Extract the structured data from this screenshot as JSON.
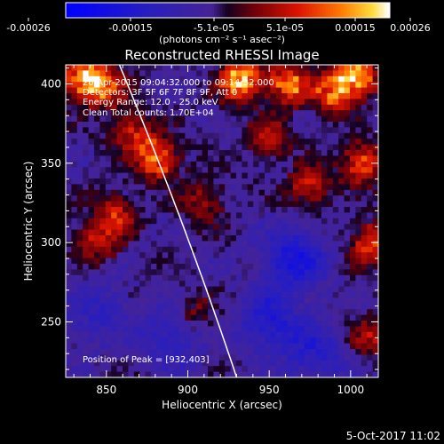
{
  "colorbar": {
    "tick_labels": [
      "-0.00026",
      "-0.00015",
      "-5.1e-05",
      "5.1e-05",
      "0.00015",
      "0.00026"
    ],
    "unit_label": "(photons cm⁻² s⁻¹ asec⁻²)",
    "range": [
      -0.00026,
      0.00026
    ]
  },
  "chart_data": {
    "type": "heatmap",
    "title": "Reconstructed RHESSI Image",
    "xlabel": "Heliocentric X (arcsec)",
    "ylabel": "Heliocentric Y (arcsec)",
    "xlim": [
      825,
      1017
    ],
    "ylim": [
      215,
      412
    ],
    "xticks": [
      850,
      900,
      950,
      1000
    ],
    "yticks": [
      250,
      300,
      350,
      400
    ],
    "grid": false,
    "annotations": [
      "20-Apr-2015 09:04:32.000 to 09:14:32.000",
      "Detectors: 3F 5F 6F 7F 8F 9F, Att 0",
      "Energy Range: 12.0 - 25.0 keV",
      "Clean    Total counts: 1.70E+04"
    ],
    "peak_label": "Position of Peak = [932,403]",
    "peak": [
      932,
      403
    ],
    "limb_overlay": true,
    "hotspots": [
      {
        "x": 836,
        "y": 404,
        "v": 0.9
      },
      {
        "x": 848,
        "y": 398,
        "v": 0.75
      },
      {
        "x": 882,
        "y": 352,
        "v": 0.8
      },
      {
        "x": 868,
        "y": 368,
        "v": 0.6
      },
      {
        "x": 856,
        "y": 318,
        "v": 0.55
      },
      {
        "x": 844,
        "y": 300,
        "v": 0.5
      },
      {
        "x": 910,
        "y": 325,
        "v": 0.4
      },
      {
        "x": 932,
        "y": 403,
        "v": 1.0
      },
      {
        "x": 962,
        "y": 400,
        "v": 0.85
      },
      {
        "x": 990,
        "y": 395,
        "v": 0.8
      },
      {
        "x": 1005,
        "y": 405,
        "v": 0.9
      },
      {
        "x": 950,
        "y": 365,
        "v": 0.5
      },
      {
        "x": 975,
        "y": 335,
        "v": 0.55
      },
      {
        "x": 1008,
        "y": 350,
        "v": 0.7
      },
      {
        "x": 1012,
        "y": 300,
        "v": 0.65
      },
      {
        "x": 905,
        "y": 255,
        "v": 0.3
      },
      {
        "x": 1010,
        "y": 240,
        "v": 0.45
      }
    ],
    "coldspots": [
      {
        "x": 965,
        "y": 290,
        "v": -0.55
      },
      {
        "x": 950,
        "y": 250,
        "v": -0.45
      },
      {
        "x": 890,
        "y": 240,
        "v": -0.35
      },
      {
        "x": 845,
        "y": 255,
        "v": -0.3
      },
      {
        "x": 980,
        "y": 230,
        "v": -0.4
      }
    ]
  },
  "footer": {
    "date_stamp": "5-Oct-2017 11:02"
  }
}
